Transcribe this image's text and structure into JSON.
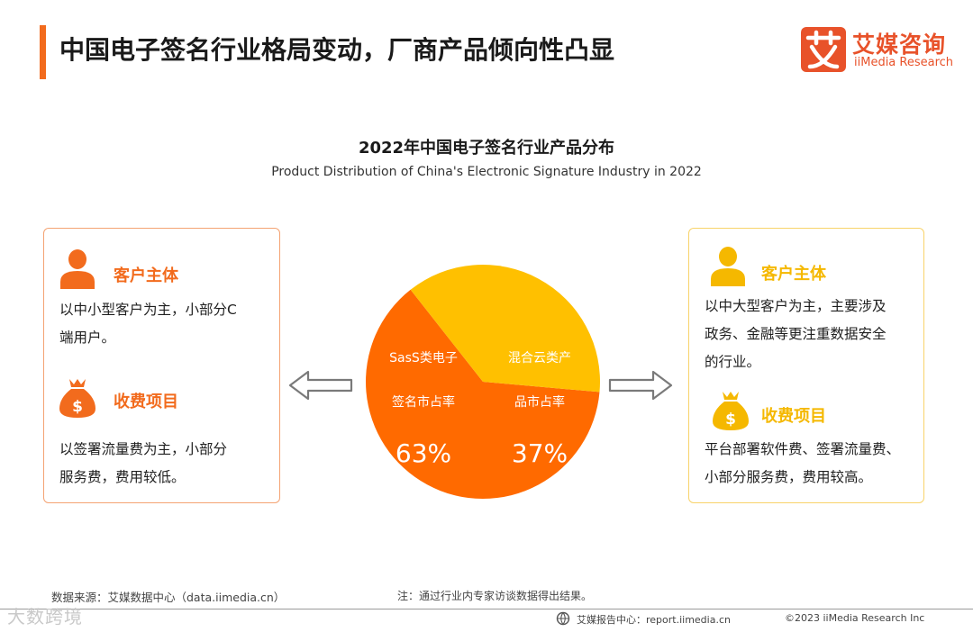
{
  "header": {
    "title": "中国电子签名行业格局变动，厂商产品倾向性凸显",
    "logo_cn": "艾媒咨询",
    "logo_en": "iiMedia Research",
    "accent_color": "#f26b1d"
  },
  "chart_data": {
    "type": "pie",
    "title": "2022年中国电子签名行业产品分布",
    "subtitle": "Product Distribution of China's Electronic Signature Industry in 2022",
    "unit": "%",
    "slices": [
      {
        "label": "SasS类电子签名市占率",
        "label_lines": [
          "SasS类电子",
          "签名市占率"
        ],
        "value": 63,
        "display": "63%",
        "color": "#ff6a00"
      },
      {
        "label": "混合云类产品市占率",
        "label_lines": [
          "混合云类产",
          "品市占率"
        ],
        "value": 37,
        "display": "37%",
        "color": "#ffc000"
      }
    ]
  },
  "left_card": {
    "client_title": "客户主体",
    "client_text": "以中小型客户为主，小部分C\n端用户。",
    "fee_title": "收费项目",
    "fee_text": "以签署流量费为主，小部分\n服务费，费用较低。",
    "color": "#f26b1d"
  },
  "right_card": {
    "client_title": "客户主体",
    "client_text": "以中大型客户为主，主要涉及\n政务、金融等更注重数据安全\n的行业。",
    "fee_title": "收费项目",
    "fee_text": "平台部署软件费、签署流量费、\n小部分服务费，费用较高。",
    "color": "#f5b800"
  },
  "footer": {
    "source": "数据来源：艾媒数据中心（data.iimedia.cn）",
    "note": "注：通过行业内专家访谈数据得出结果。",
    "report": "艾媒报告中心：report.iimedia.cn",
    "copyright": "©2023  iiMedia Research  Inc",
    "watermark": "大数跨境"
  }
}
